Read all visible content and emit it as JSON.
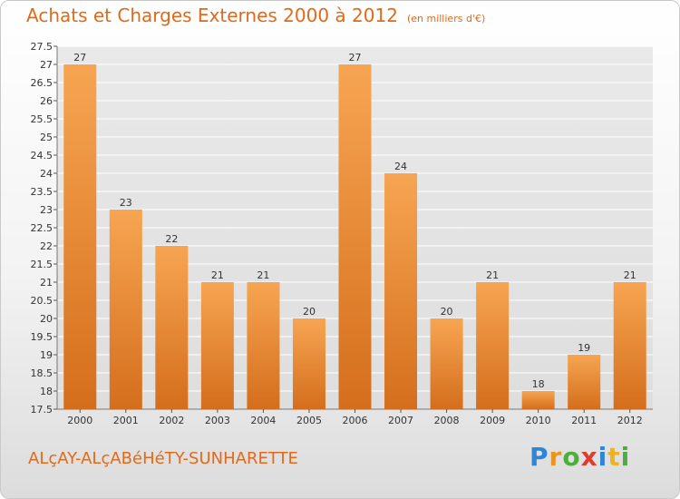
{
  "header": {
    "title": "Achats et Charges Externes 2000 à 2012",
    "subtitle": "(en milliers d'€)"
  },
  "commune": "ALçAY-ALçABéHéTY-SUNHARETTE",
  "logo": {
    "text": "Proxiti",
    "letters": [
      "P",
      "r",
      "o",
      "x",
      "i",
      "t",
      "i"
    ]
  },
  "colors": {
    "accent": "#e06a1a",
    "bar_light": "#f7a552",
    "bar_dark": "#d46e1c"
  },
  "chart_data": {
    "type": "bar",
    "title": "Achats et Charges Externes 2000 à 2012",
    "subtitle": "(en milliers d'€)",
    "categories": [
      "2000",
      "2001",
      "2002",
      "2003",
      "2004",
      "2005",
      "2006",
      "2007",
      "2008",
      "2009",
      "2010",
      "2011",
      "2012"
    ],
    "values": [
      27,
      23,
      22,
      21,
      21,
      20,
      27,
      24,
      20,
      21,
      18,
      19,
      21
    ],
    "value_labels": [
      "27",
      "23",
      "22",
      "21",
      "21",
      "20",
      "27",
      "24",
      "20",
      "21",
      "18",
      "19",
      "21"
    ],
    "ylim": [
      17.5,
      27.5
    ],
    "yticks": [
      "17.5",
      "18",
      "18.5",
      "19",
      "19.5",
      "20",
      "20.5",
      "21",
      "21.5",
      "22",
      "22.5",
      "23",
      "23.5",
      "24",
      "24.5",
      "25",
      "25.5",
      "26",
      "26.5",
      "27",
      "27.5"
    ],
    "grid": true,
    "xlabel": "",
    "ylabel": ""
  }
}
